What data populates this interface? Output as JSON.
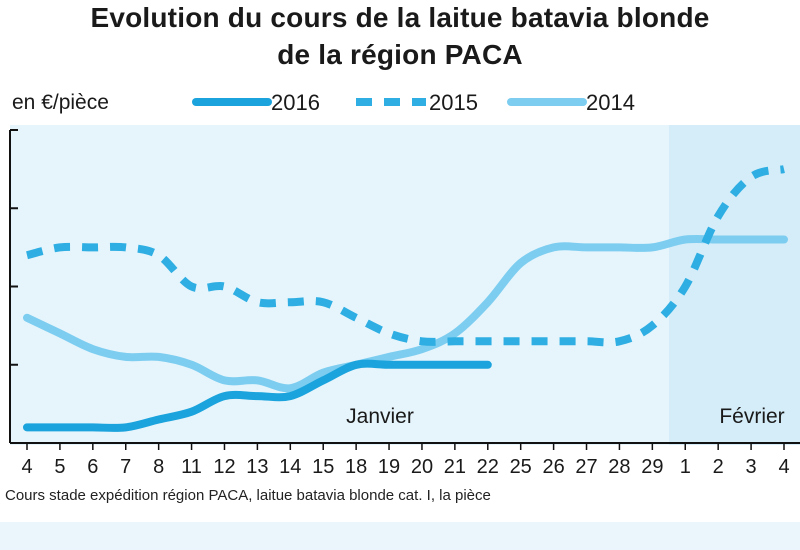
{
  "title_line1": "Evolution du cours de la laitue batavia blonde",
  "title_line2": "de la région PACA",
  "unit_label": "en €/pièce",
  "note": "Cours stade expédition région PACA, laitue batavia blonde cat. I, la pièce",
  "colors": {
    "s2016": "#1aa3dc",
    "s2015": "#2eaee2",
    "s2014": "#7dcdf0",
    "band_jan": "#e6f5fc",
    "band_feb": "#d4edf9",
    "axis": "#111111"
  },
  "chart_data": {
    "type": "line",
    "xlabel": "",
    "ylabel": "en €/pièce",
    "months": [
      "Janvier",
      "Février"
    ],
    "categories": [
      "4",
      "5",
      "6",
      "7",
      "8",
      "11",
      "12",
      "13",
      "14",
      "15",
      "18",
      "19",
      "20",
      "21",
      "22",
      "25",
      "26",
      "27",
      "28",
      "29",
      "1",
      "2",
      "3",
      "4"
    ],
    "ylim": [
      0,
      4
    ],
    "y_tick_labels": [],
    "grid": false,
    "legend_placement": "top",
    "series": [
      {
        "name": "2016",
        "style": "solid",
        "values": [
          0.2,
          0.2,
          0.2,
          0.2,
          0.3,
          0.4,
          0.6,
          0.6,
          0.6,
          0.8,
          1.0,
          1.0,
          1.0,
          1.0,
          1.0,
          null,
          null,
          null,
          null,
          null,
          null,
          null,
          null,
          null
        ]
      },
      {
        "name": "2015",
        "style": "dashed",
        "values": [
          2.4,
          2.5,
          2.5,
          2.5,
          2.4,
          2.0,
          2.0,
          1.8,
          1.8,
          1.8,
          1.6,
          1.4,
          1.3,
          1.3,
          1.3,
          1.3,
          1.3,
          1.3,
          1.3,
          1.5,
          2.0,
          2.9,
          3.4,
          3.5
        ]
      },
      {
        "name": "2014",
        "style": "solid",
        "values": [
          1.6,
          1.4,
          1.2,
          1.1,
          1.1,
          1.0,
          0.8,
          0.8,
          0.7,
          0.9,
          1.0,
          1.1,
          1.2,
          1.4,
          1.8,
          2.3,
          2.5,
          2.5,
          2.5,
          2.5,
          2.6,
          2.6,
          2.6,
          2.6
        ]
      }
    ]
  }
}
